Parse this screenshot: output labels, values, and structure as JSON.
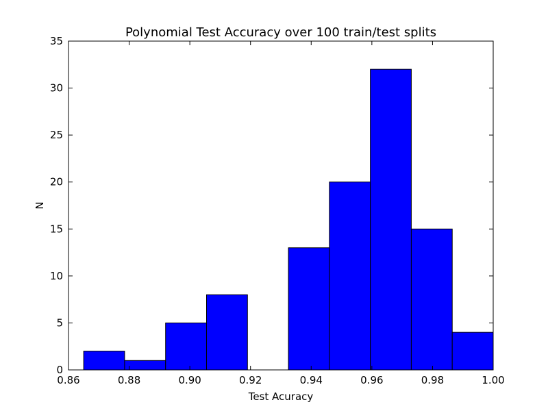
{
  "chart_data": {
    "type": "bar",
    "title": "Polynomial Test Accuracy over 100 train/test splits",
    "xlabel": "Test Acuracy",
    "ylabel": "N",
    "xlim": [
      0.86,
      1.0
    ],
    "ylim": [
      0,
      35
    ],
    "bins": [
      {
        "x0": 0.865,
        "x1": 0.8785,
        "value": 2
      },
      {
        "x0": 0.8785,
        "x1": 0.892,
        "value": 1
      },
      {
        "x0": 0.892,
        "x1": 0.9055,
        "value": 5
      },
      {
        "x0": 0.9055,
        "x1": 0.919,
        "value": 8
      },
      {
        "x0": 0.919,
        "x1": 0.9325,
        "value": 0
      },
      {
        "x0": 0.9325,
        "x1": 0.946,
        "value": 13
      },
      {
        "x0": 0.946,
        "x1": 0.9595,
        "value": 20
      },
      {
        "x0": 0.9595,
        "x1": 0.973,
        "value": 32
      },
      {
        "x0": 0.973,
        "x1": 0.9865,
        "value": 15
      },
      {
        "x0": 0.9865,
        "x1": 1.0,
        "value": 4
      }
    ],
    "x_ticks": [
      "0.86",
      "0.88",
      "0.90",
      "0.92",
      "0.94",
      "0.96",
      "0.98",
      "1.00"
    ],
    "x_tick_values": [
      0.86,
      0.88,
      0.9,
      0.92,
      0.94,
      0.96,
      0.98,
      1.0
    ],
    "y_ticks": [
      "0",
      "5",
      "10",
      "15",
      "20",
      "25",
      "30",
      "35"
    ],
    "y_tick_values": [
      0,
      5,
      10,
      15,
      20,
      25,
      30,
      35
    ],
    "bar_color": "#0000ff",
    "edge_color": "#000000",
    "grid": false,
    "legend": "none"
  }
}
